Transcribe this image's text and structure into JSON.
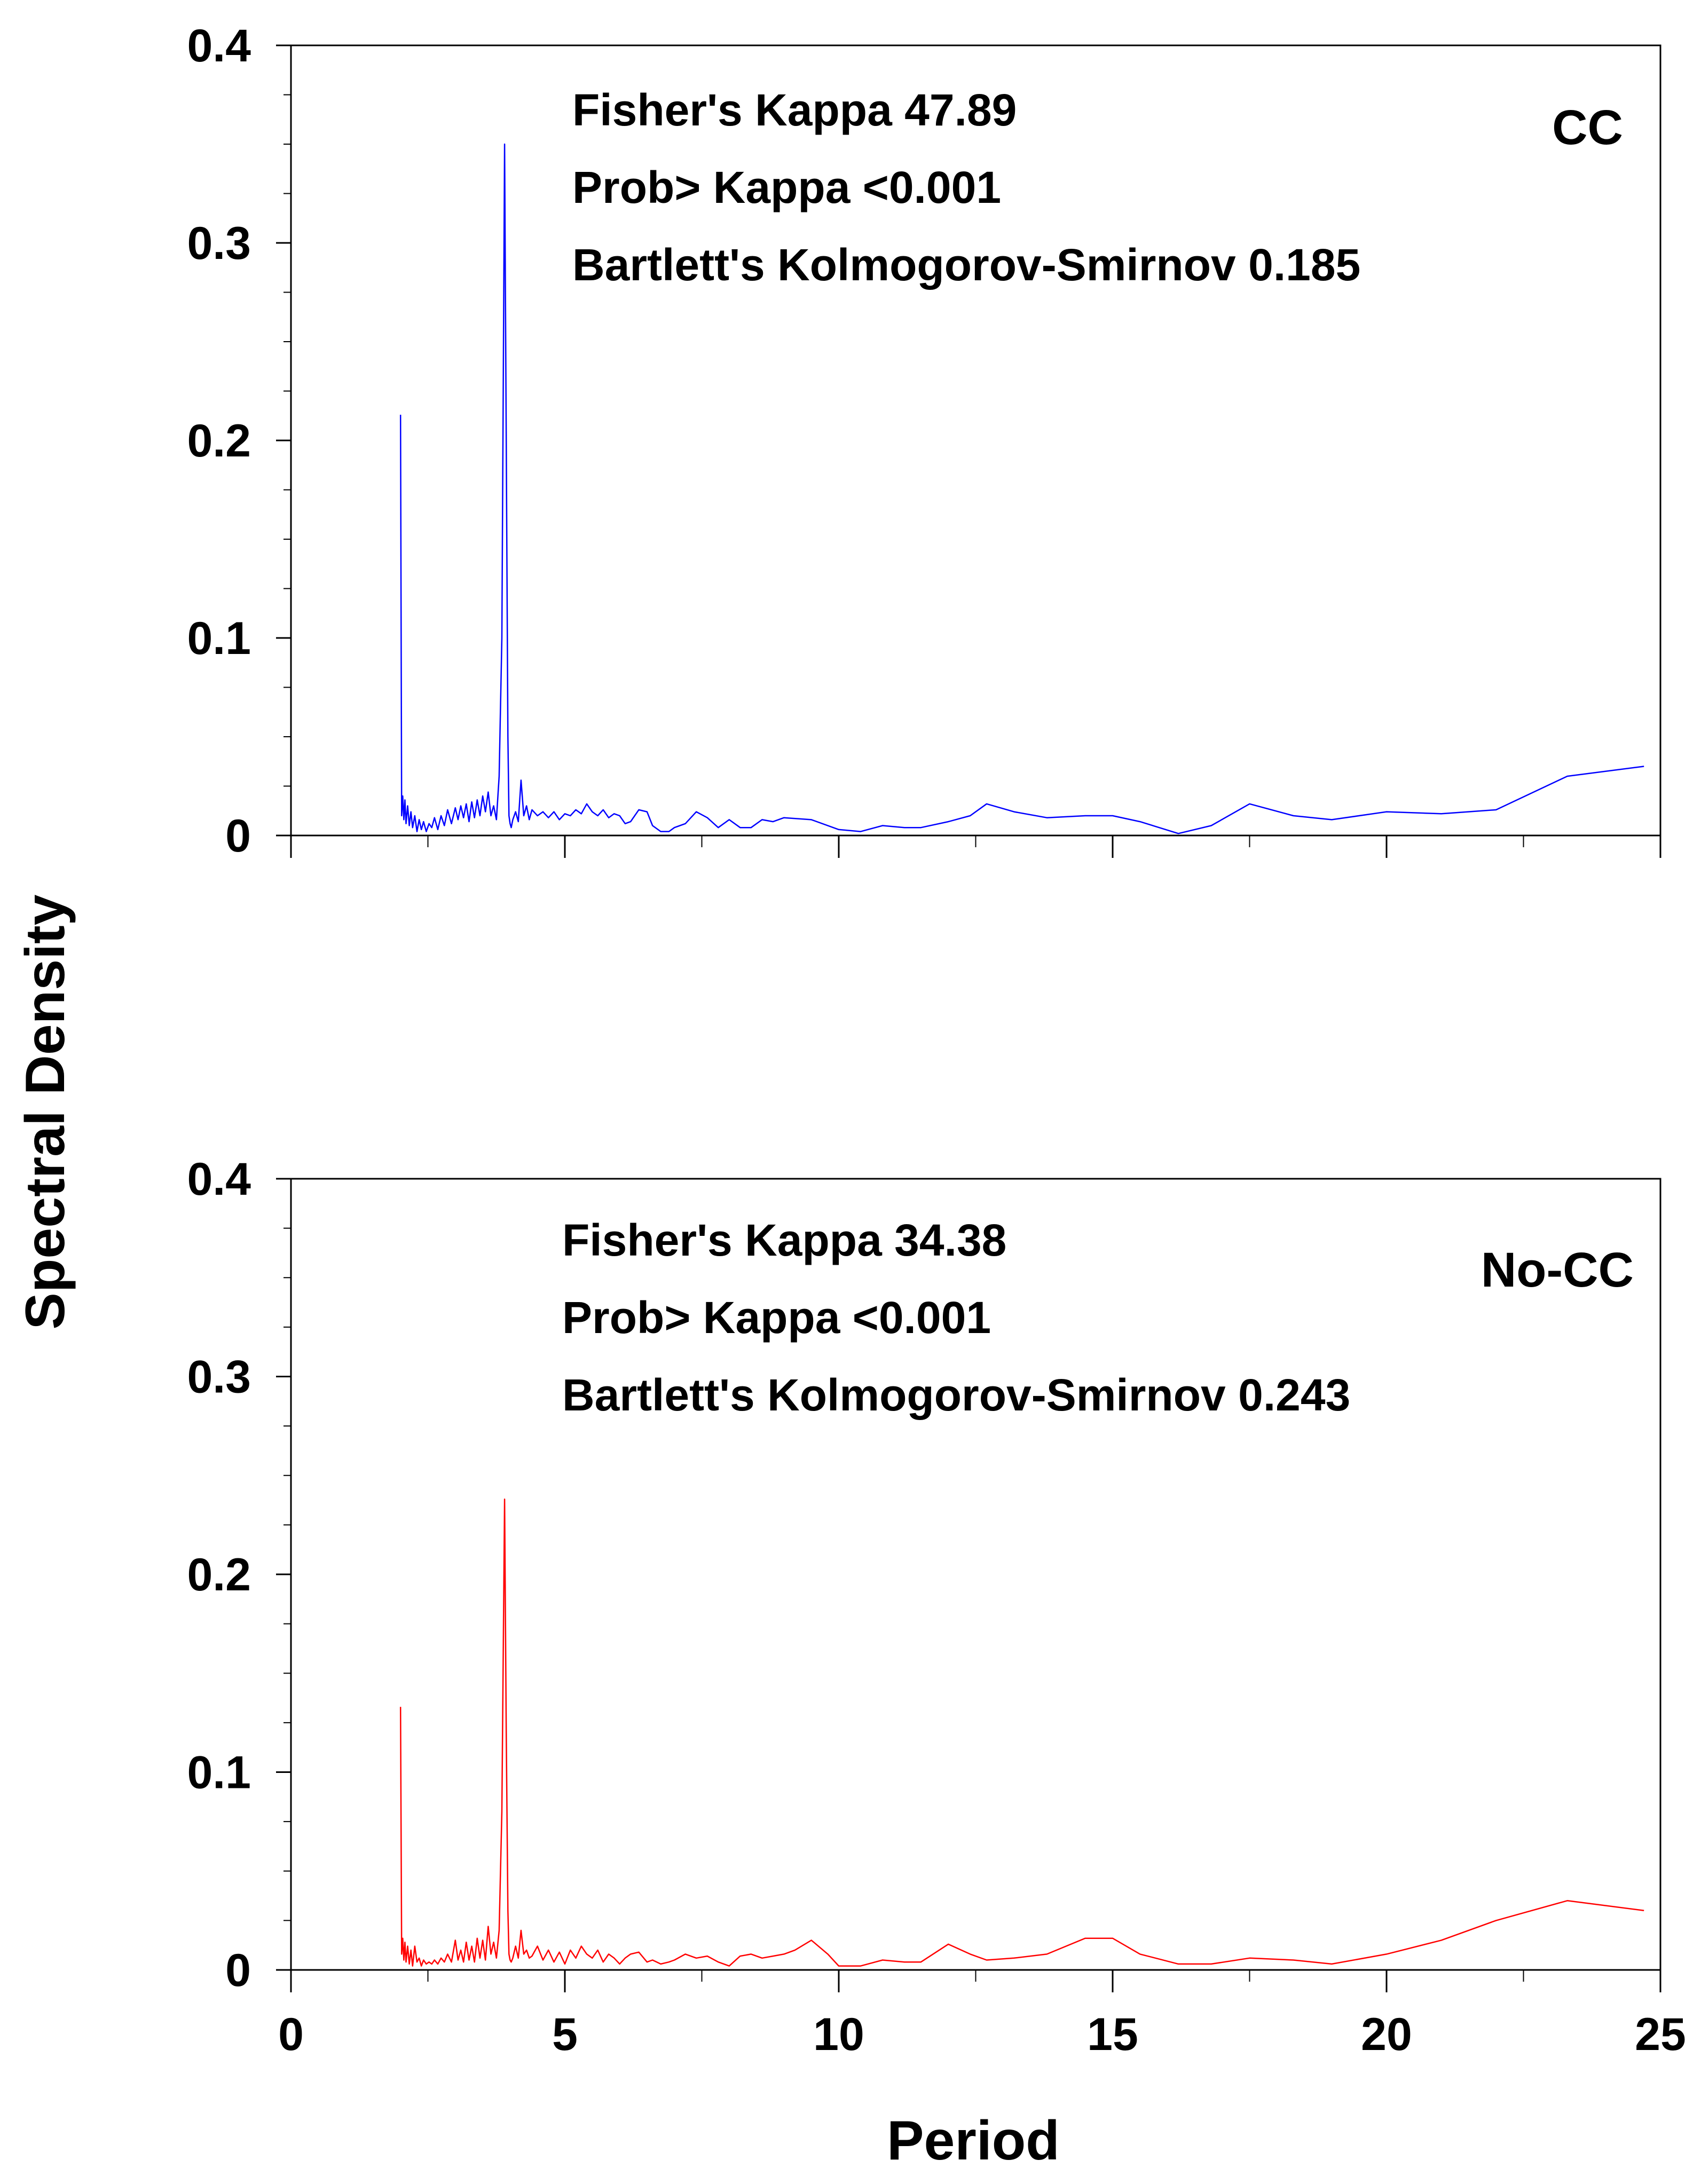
{
  "figure": {
    "ylabel": "Spectral Density",
    "xlabel": "Period"
  },
  "chart_data": [
    {
      "type": "line",
      "panel_label": "CC",
      "annotations": [
        "Fisher's Kappa 47.89",
        "Prob> Kappa <0.001",
        "Bartlett's Kolmogorov-Smirnov 0.185"
      ],
      "xlim": [
        0,
        25
      ],
      "ylim": [
        0,
        0.4
      ],
      "x_ticks": [
        "0",
        "5",
        "10",
        "15",
        "20",
        "25"
      ],
      "y_ticks": [
        "0",
        "0.1",
        "0.2",
        "0.3",
        "0.4"
      ],
      "show_x_tick_labels": false,
      "grid": false,
      "color": "#0000ff",
      "series": [
        {
          "x": [
            2.0,
            2.02,
            2.04,
            2.06,
            2.08,
            2.1,
            2.13,
            2.16,
            2.19,
            2.22,
            2.26,
            2.3,
            2.34,
            2.38,
            2.42,
            2.47,
            2.52,
            2.57,
            2.62,
            2.68,
            2.74,
            2.8,
            2.86,
            2.93,
            3.0,
            3.05,
            3.1,
            3.15,
            3.2,
            3.25,
            3.3,
            3.35,
            3.4,
            3.45,
            3.5,
            3.55,
            3.6,
            3.65,
            3.7,
            3.75,
            3.8,
            3.85,
            3.9,
            3.93,
            3.96,
            3.98,
            4.0,
            4.02,
            4.05,
            4.1,
            4.15,
            4.2,
            4.25,
            4.3,
            4.35,
            4.4,
            4.5,
            4.6,
            4.7,
            4.8,
            4.9,
            5.0,
            5.1,
            5.2,
            5.3,
            5.4,
            5.5,
            5.6,
            5.7,
            5.8,
            5.9,
            6.0,
            6.1,
            6.2,
            6.35,
            6.5,
            6.6,
            6.75,
            6.9,
            7.0,
            7.2,
            7.4,
            7.6,
            7.8,
            8.0,
            8.2,
            8.4,
            8.6,
            8.8,
            9.0,
            9.5,
            10.0,
            10.4,
            10.8,
            11.2,
            11.5,
            12.0,
            12.4,
            12.7,
            13.2,
            13.8,
            14.5,
            15.0,
            15.5,
            16.2,
            16.8,
            17.5,
            18.3,
            19.0,
            20.0,
            21.0,
            22.0,
            23.3,
            24.7
          ],
          "y": [
            0.213,
            0.01,
            0.02,
            0.008,
            0.018,
            0.006,
            0.015,
            0.005,
            0.012,
            0.004,
            0.01,
            0.002,
            0.008,
            0.003,
            0.007,
            0.002,
            0.006,
            0.004,
            0.009,
            0.003,
            0.01,
            0.005,
            0.013,
            0.006,
            0.014,
            0.008,
            0.015,
            0.009,
            0.016,
            0.007,
            0.017,
            0.009,
            0.018,
            0.01,
            0.02,
            0.012,
            0.022,
            0.01,
            0.015,
            0.008,
            0.03,
            0.1,
            0.35,
            0.2,
            0.05,
            0.01,
            0.006,
            0.004,
            0.008,
            0.012,
            0.007,
            0.028,
            0.01,
            0.015,
            0.008,
            0.013,
            0.01,
            0.012,
            0.009,
            0.012,
            0.008,
            0.011,
            0.01,
            0.013,
            0.011,
            0.016,
            0.012,
            0.01,
            0.013,
            0.009,
            0.011,
            0.01,
            0.006,
            0.007,
            0.013,
            0.012,
            0.005,
            0.002,
            0.002,
            0.004,
            0.006,
            0.012,
            0.009,
            0.004,
            0.008,
            0.004,
            0.004,
            0.008,
            0.007,
            0.009,
            0.008,
            0.003,
            0.002,
            0.005,
            0.004,
            0.004,
            0.007,
            0.01,
            0.016,
            0.012,
            0.009,
            0.01,
            0.01,
            0.007,
            0.001,
            0.005,
            0.016,
            0.01,
            0.008,
            0.012,
            0.011,
            0.013,
            0.03,
            0.035
          ]
        }
      ]
    },
    {
      "type": "line",
      "panel_label": "No-CC",
      "annotations": [
        "Fisher's Kappa 34.38",
        "Prob> Kappa <0.001",
        "Bartlett's Kolmogorov-Smirnov 0.243"
      ],
      "xlim": [
        0,
        25
      ],
      "ylim": [
        0,
        0.4
      ],
      "x_ticks": [
        "0",
        "5",
        "10",
        "15",
        "20",
        "25"
      ],
      "y_ticks": [
        "0",
        "0.1",
        "0.2",
        "0.3",
        "0.4"
      ],
      "show_x_tick_labels": true,
      "grid": false,
      "color": "#ff0000",
      "series": [
        {
          "x": [
            2.0,
            2.02,
            2.04,
            2.06,
            2.08,
            2.1,
            2.13,
            2.16,
            2.19,
            2.22,
            2.26,
            2.3,
            2.34,
            2.38,
            2.42,
            2.47,
            2.52,
            2.57,
            2.62,
            2.68,
            2.74,
            2.8,
            2.86,
            2.93,
            3.0,
            3.05,
            3.1,
            3.15,
            3.2,
            3.25,
            3.3,
            3.35,
            3.4,
            3.45,
            3.5,
            3.55,
            3.6,
            3.65,
            3.7,
            3.75,
            3.8,
            3.85,
            3.9,
            3.93,
            3.96,
            3.98,
            4.0,
            4.02,
            4.05,
            4.1,
            4.15,
            4.2,
            4.25,
            4.3,
            4.35,
            4.4,
            4.5,
            4.6,
            4.7,
            4.8,
            4.9,
            5.0,
            5.1,
            5.2,
            5.3,
            5.4,
            5.5,
            5.6,
            5.7,
            5.8,
            5.9,
            6.0,
            6.1,
            6.2,
            6.35,
            6.5,
            6.6,
            6.75,
            6.9,
            7.0,
            7.2,
            7.4,
            7.6,
            7.8,
            8.0,
            8.2,
            8.4,
            8.6,
            8.8,
            9.0,
            9.2,
            9.5,
            9.8,
            10.0,
            10.4,
            10.8,
            11.2,
            11.5,
            12.0,
            12.4,
            12.7,
            13.2,
            13.8,
            14.5,
            15.0,
            15.5,
            16.2,
            16.8,
            17.5,
            18.3,
            19.0,
            20.0,
            21.0,
            22.0,
            23.3,
            24.7
          ],
          "y": [
            0.133,
            0.008,
            0.016,
            0.005,
            0.014,
            0.004,
            0.012,
            0.003,
            0.01,
            0.002,
            0.012,
            0.004,
            0.006,
            0.002,
            0.005,
            0.003,
            0.004,
            0.003,
            0.005,
            0.003,
            0.006,
            0.004,
            0.008,
            0.004,
            0.015,
            0.005,
            0.01,
            0.004,
            0.014,
            0.005,
            0.012,
            0.004,
            0.016,
            0.006,
            0.015,
            0.005,
            0.022,
            0.008,
            0.014,
            0.006,
            0.02,
            0.08,
            0.238,
            0.12,
            0.03,
            0.008,
            0.005,
            0.004,
            0.006,
            0.012,
            0.006,
            0.02,
            0.008,
            0.01,
            0.006,
            0.007,
            0.012,
            0.005,
            0.01,
            0.004,
            0.009,
            0.003,
            0.01,
            0.006,
            0.012,
            0.008,
            0.006,
            0.01,
            0.004,
            0.008,
            0.006,
            0.003,
            0.006,
            0.008,
            0.009,
            0.004,
            0.005,
            0.003,
            0.004,
            0.005,
            0.008,
            0.006,
            0.007,
            0.004,
            0.002,
            0.007,
            0.008,
            0.006,
            0.007,
            0.008,
            0.01,
            0.015,
            0.008,
            0.002,
            0.002,
            0.005,
            0.004,
            0.004,
            0.013,
            0.008,
            0.005,
            0.006,
            0.008,
            0.016,
            0.016,
            0.008,
            0.003,
            0.003,
            0.006,
            0.005,
            0.003,
            0.008,
            0.015,
            0.025,
            0.035,
            0.03
          ]
        }
      ]
    }
  ]
}
